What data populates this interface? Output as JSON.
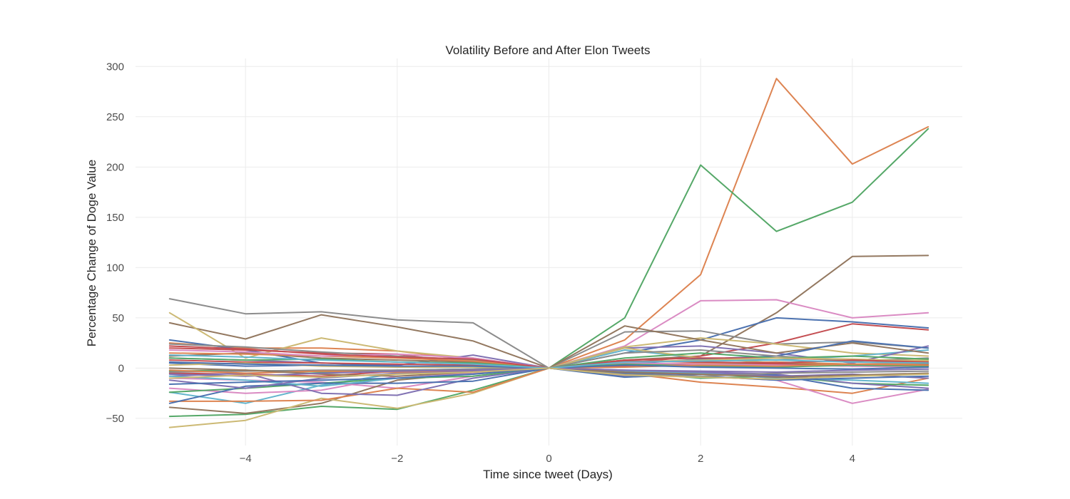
{
  "chart_data": {
    "type": "line",
    "title": "Volatility Before and After Elon Tweets",
    "xlabel": "Time since tweet (Days)",
    "ylabel": "Percentage Change of Doge Value",
    "x": [
      -5,
      -4,
      -3,
      -2,
      -1,
      0,
      1,
      2,
      3,
      4,
      5
    ],
    "xlim": [
      -5.45,
      5.45
    ],
    "ylim": [
      -77,
      308
    ],
    "xticks": [
      -4,
      -2,
      0,
      2,
      4
    ],
    "xtick_labels": [
      "−4",
      "−2",
      "0",
      "2",
      "4"
    ],
    "yticks": [
      -50,
      0,
      50,
      100,
      150,
      200,
      250,
      300
    ],
    "ytick_labels": [
      "−50",
      "0",
      "50",
      "100",
      "150",
      "200",
      "250",
      "300"
    ],
    "grid": true,
    "legend": false,
    "series": [
      {
        "color": "#dd8452",
        "values": [
          25,
          20,
          20,
          17,
          8,
          0,
          28,
          93,
          288,
          203,
          240
        ]
      },
      {
        "color": "#55a868",
        "values": [
          -48,
          -46,
          -38,
          -41,
          -22,
          0,
          50,
          202,
          136,
          165,
          238
        ]
      },
      {
        "color": "#937860",
        "values": [
          45,
          29,
          53,
          41,
          27,
          0,
          8,
          12,
          55,
          111,
          112
        ]
      },
      {
        "color": "#da8bc3",
        "values": [
          -10,
          -12,
          -14,
          -20,
          -8,
          0,
          22,
          67,
          68,
          50,
          55
        ]
      },
      {
        "color": "#4c72b0",
        "values": [
          5,
          2,
          3,
          2,
          1,
          0,
          15,
          28,
          50,
          46,
          40
        ]
      },
      {
        "color": "#c44e52",
        "values": [
          -5,
          -6,
          -8,
          -3,
          -2,
          0,
          5,
          12,
          25,
          44,
          38
        ]
      },
      {
        "color": "#8c8c8c",
        "values": [
          69,
          54,
          56,
          48,
          45,
          0,
          36,
          37,
          24,
          26,
          20
        ]
      },
      {
        "color": "#ccb974",
        "values": [
          55,
          10,
          30,
          17,
          10,
          0,
          21,
          30,
          24,
          15,
          12
        ]
      },
      {
        "color": "#64b5cd",
        "values": [
          -24,
          -35,
          -17,
          -5,
          -3,
          0,
          18,
          10,
          8,
          12,
          18
        ]
      },
      {
        "color": "#8172b3",
        "values": [
          10,
          8,
          5,
          3,
          13,
          0,
          20,
          22,
          15,
          5,
          22
        ]
      },
      {
        "color": "#937860",
        "values": [
          -39,
          -45,
          -35,
          -12,
          -5,
          0,
          42,
          28,
          15,
          25,
          15
        ]
      },
      {
        "color": "#ccb974",
        "values": [
          -59,
          -52,
          -30,
          -40,
          -25,
          0,
          20,
          10,
          5,
          8,
          8
        ]
      },
      {
        "color": "#4c72b0",
        "values": [
          28,
          18,
          5,
          2,
          1,
          0,
          4,
          9,
          12,
          27,
          20
        ]
      },
      {
        "color": "#c44e52",
        "values": [
          20,
          18,
          15,
          14,
          4,
          0,
          8,
          10,
          10,
          8,
          5
        ]
      },
      {
        "color": "#dd8452",
        "values": [
          -33,
          -33,
          -32,
          -20,
          -24,
          0,
          -5,
          -14,
          -19,
          -25,
          -10
        ]
      },
      {
        "color": "#da8bc3",
        "values": [
          -20,
          -25,
          -22,
          -8,
          -5,
          0,
          -3,
          -8,
          -12,
          -35,
          -21
        ]
      },
      {
        "color": "#55a868",
        "values": [
          -24,
          -20,
          -15,
          -10,
          -8,
          0,
          -4,
          -10,
          -8,
          -15,
          -17
        ]
      },
      {
        "color": "#8172b3",
        "values": [
          -8,
          -5,
          -25,
          -27,
          -10,
          0,
          -8,
          -4,
          -6,
          -15,
          -20
        ]
      },
      {
        "color": "#4c72b0",
        "values": [
          -35,
          -18,
          -15,
          -15,
          -13,
          0,
          -9,
          -6,
          -7,
          -20,
          -22
        ]
      },
      {
        "color": "#8c8c8c",
        "values": [
          24,
          21,
          16,
          12,
          8,
          0,
          15,
          18,
          12,
          7,
          10
        ]
      },
      {
        "color": "#937860",
        "values": [
          12,
          15,
          10,
          8,
          6,
          0,
          2,
          4,
          5,
          3,
          4
        ]
      },
      {
        "color": "#55a868",
        "values": [
          -3,
          -2,
          -4,
          -2,
          -1,
          0,
          10,
          15,
          10,
          12,
          9
        ]
      },
      {
        "color": "#dd8452",
        "values": [
          15,
          14,
          12,
          10,
          7,
          0,
          3,
          5,
          6,
          4,
          5
        ]
      },
      {
        "color": "#c44e52",
        "values": [
          8,
          6,
          5,
          4,
          3,
          0,
          2,
          3,
          4,
          2,
          3
        ]
      },
      {
        "color": "#64b5cd",
        "values": [
          -8,
          -12,
          -18,
          -10,
          -6,
          0,
          -3,
          -5,
          -10,
          -12,
          -15
        ]
      },
      {
        "color": "#8172b3",
        "values": [
          -12,
          -20,
          -10,
          -5,
          -3,
          0,
          -2,
          -4,
          -8,
          -6,
          -10
        ]
      },
      {
        "color": "#ccb974",
        "values": [
          3,
          5,
          2,
          1,
          1,
          0,
          6,
          8,
          10,
          9,
          7
        ]
      },
      {
        "color": "#4c72b0",
        "values": [
          -16,
          -14,
          -12,
          -10,
          -6,
          0,
          -5,
          -8,
          -12,
          -10,
          -8
        ]
      },
      {
        "color": "#da8bc3",
        "values": [
          18,
          16,
          12,
          14,
          10,
          0,
          5,
          4,
          3,
          2,
          1
        ]
      },
      {
        "color": "#8c8c8c",
        "values": [
          -4,
          -3,
          -2,
          -2,
          -1,
          0,
          -6,
          -8,
          -5,
          -4,
          -3
        ]
      },
      {
        "color": "#55a868",
        "values": [
          10,
          8,
          9,
          6,
          5,
          0,
          4,
          2,
          1,
          3,
          2
        ]
      },
      {
        "color": "#dd8452",
        "values": [
          -2,
          -5,
          -3,
          -4,
          -2,
          0,
          1,
          3,
          2,
          4,
          3
        ]
      },
      {
        "color": "#c44e52",
        "values": [
          22,
          19,
          14,
          11,
          9,
          0,
          7,
          6,
          5,
          8,
          6
        ]
      },
      {
        "color": "#937860",
        "values": [
          0,
          -2,
          -6,
          -8,
          -4,
          0,
          -4,
          -6,
          -9,
          -7,
          -5
        ]
      },
      {
        "color": "#4c72b0",
        "values": [
          6,
          4,
          3,
          2,
          2,
          0,
          3,
          1,
          0,
          -1,
          1
        ]
      },
      {
        "color": "#8172b3",
        "values": [
          -6,
          -8,
          -5,
          -3,
          -2,
          0,
          -2,
          -3,
          -4,
          -2,
          -1
        ]
      },
      {
        "color": "#64b5cd",
        "values": [
          13,
          11,
          8,
          6,
          4,
          0,
          6,
          7,
          8,
          6,
          5
        ]
      },
      {
        "color": "#ccb974",
        "values": [
          -10,
          -7,
          -9,
          -6,
          -4,
          0,
          -7,
          -9,
          -11,
          -8,
          -6
        ]
      }
    ]
  }
}
